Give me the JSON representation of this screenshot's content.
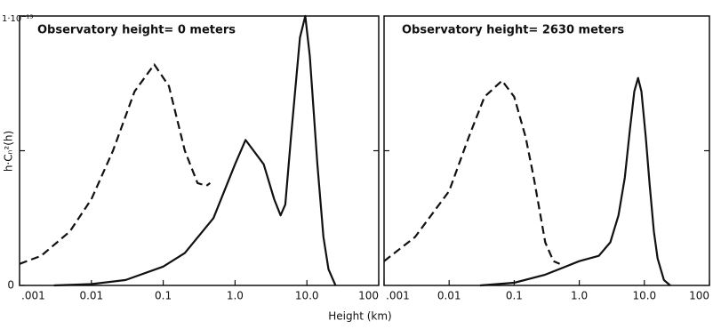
{
  "chart_data": [
    {
      "type": "line",
      "annotation": "Observatory height= 0 meters",
      "xlabel": "Height (km)",
      "ylabel": "h·Cₙ²(h)",
      "xscale": "log",
      "xlim": [
        0.001,
        100
      ],
      "ylim": [
        0,
        1e-13
      ],
      "xticks": [
        {
          "value": 0.001,
          "label": ".001"
        },
        {
          "value": 0.01,
          "label": "0.01"
        },
        {
          "value": 0.1,
          "label": "0.1"
        },
        {
          "value": 1,
          "label": "1.0"
        },
        {
          "value": 10,
          "label": "10.0"
        },
        {
          "value": 100,
          "label": "100"
        }
      ],
      "yticks": [
        0,
        {
          "value": 1e-13,
          "label": "1·10⁻¹³"
        }
      ],
      "yminorticks": [
        5e-14
      ],
      "series": [
        {
          "color": "#111111",
          "linestyle": "dashed",
          "x": [
            0.001,
            0.002,
            0.005,
            0.01,
            0.02,
            0.04,
            0.075,
            0.12,
            0.2,
            0.3,
            0.4,
            0.45
          ],
          "values": [
            8e-15,
            1.1e-14,
            2e-14,
            3.2e-14,
            5e-14,
            7.2e-14,
            8.2e-14,
            7.4e-14,
            5e-14,
            3.8e-14,
            3.7e-14,
            3.8e-14
          ]
        },
        {
          "color": "#111111",
          "linestyle": "solid",
          "x": [
            0.003,
            0.01,
            0.03,
            0.1,
            0.2,
            0.5,
            1.0,
            1.4,
            2.5,
            3.5,
            4.3,
            5,
            6,
            8,
            9.5,
            11,
            14,
            17,
            20,
            25
          ],
          "values": [
            0,
            5e-16,
            2e-15,
            7e-15,
            1.2e-14,
            2.5e-14,
            4.5e-14,
            5.4e-14,
            4.5e-14,
            3.2e-14,
            2.6e-14,
            3e-14,
            5.5e-14,
            9.2e-14,
            1e-13,
            8.5e-14,
            4.5e-14,
            1.8e-14,
            6e-15,
            0
          ]
        }
      ]
    },
    {
      "type": "line",
      "annotation": "Observatory height= 2630 meters",
      "xscale": "log",
      "xlim": [
        0.001,
        100
      ],
      "ylim": [
        0,
        1e-13
      ],
      "xticks": [
        {
          "value": 0.001,
          "label": ".001"
        },
        {
          "value": 0.01,
          "label": "0.01"
        },
        {
          "value": 0.1,
          "label": "0.1"
        },
        {
          "value": 1,
          "label": "1.0"
        },
        {
          "value": 10,
          "label": "10.0"
        },
        {
          "value": 100,
          "label": "100"
        }
      ],
      "yminorticks": [
        5e-14
      ],
      "series": [
        {
          "color": "#111111",
          "linestyle": "dashed",
          "x": [
            0.001,
            0.003,
            0.01,
            0.02,
            0.035,
            0.065,
            0.1,
            0.15,
            0.2,
            0.3,
            0.4,
            0.5
          ],
          "values": [
            9e-15,
            1.8e-14,
            3.5e-14,
            5.5e-14,
            7e-14,
            7.6e-14,
            7e-14,
            5.5e-14,
            4e-14,
            1.6e-14,
            9e-15,
            8e-15
          ]
        },
        {
          "color": "#111111",
          "linestyle": "solid",
          "x": [
            0.03,
            0.1,
            0.3,
            1.0,
            2,
            3,
            4,
            5,
            6,
            7,
            8,
            9,
            10.5,
            12,
            14,
            16,
            20,
            25
          ],
          "values": [
            0,
            1e-15,
            4e-15,
            9e-15,
            1.1e-14,
            1.6e-14,
            2.6e-14,
            4e-14,
            5.8e-14,
            7.2e-14,
            7.7e-14,
            7.2e-14,
            5.5e-14,
            3.8e-14,
            2e-14,
            1e-14,
            2e-15,
            0
          ]
        }
      ]
    }
  ]
}
